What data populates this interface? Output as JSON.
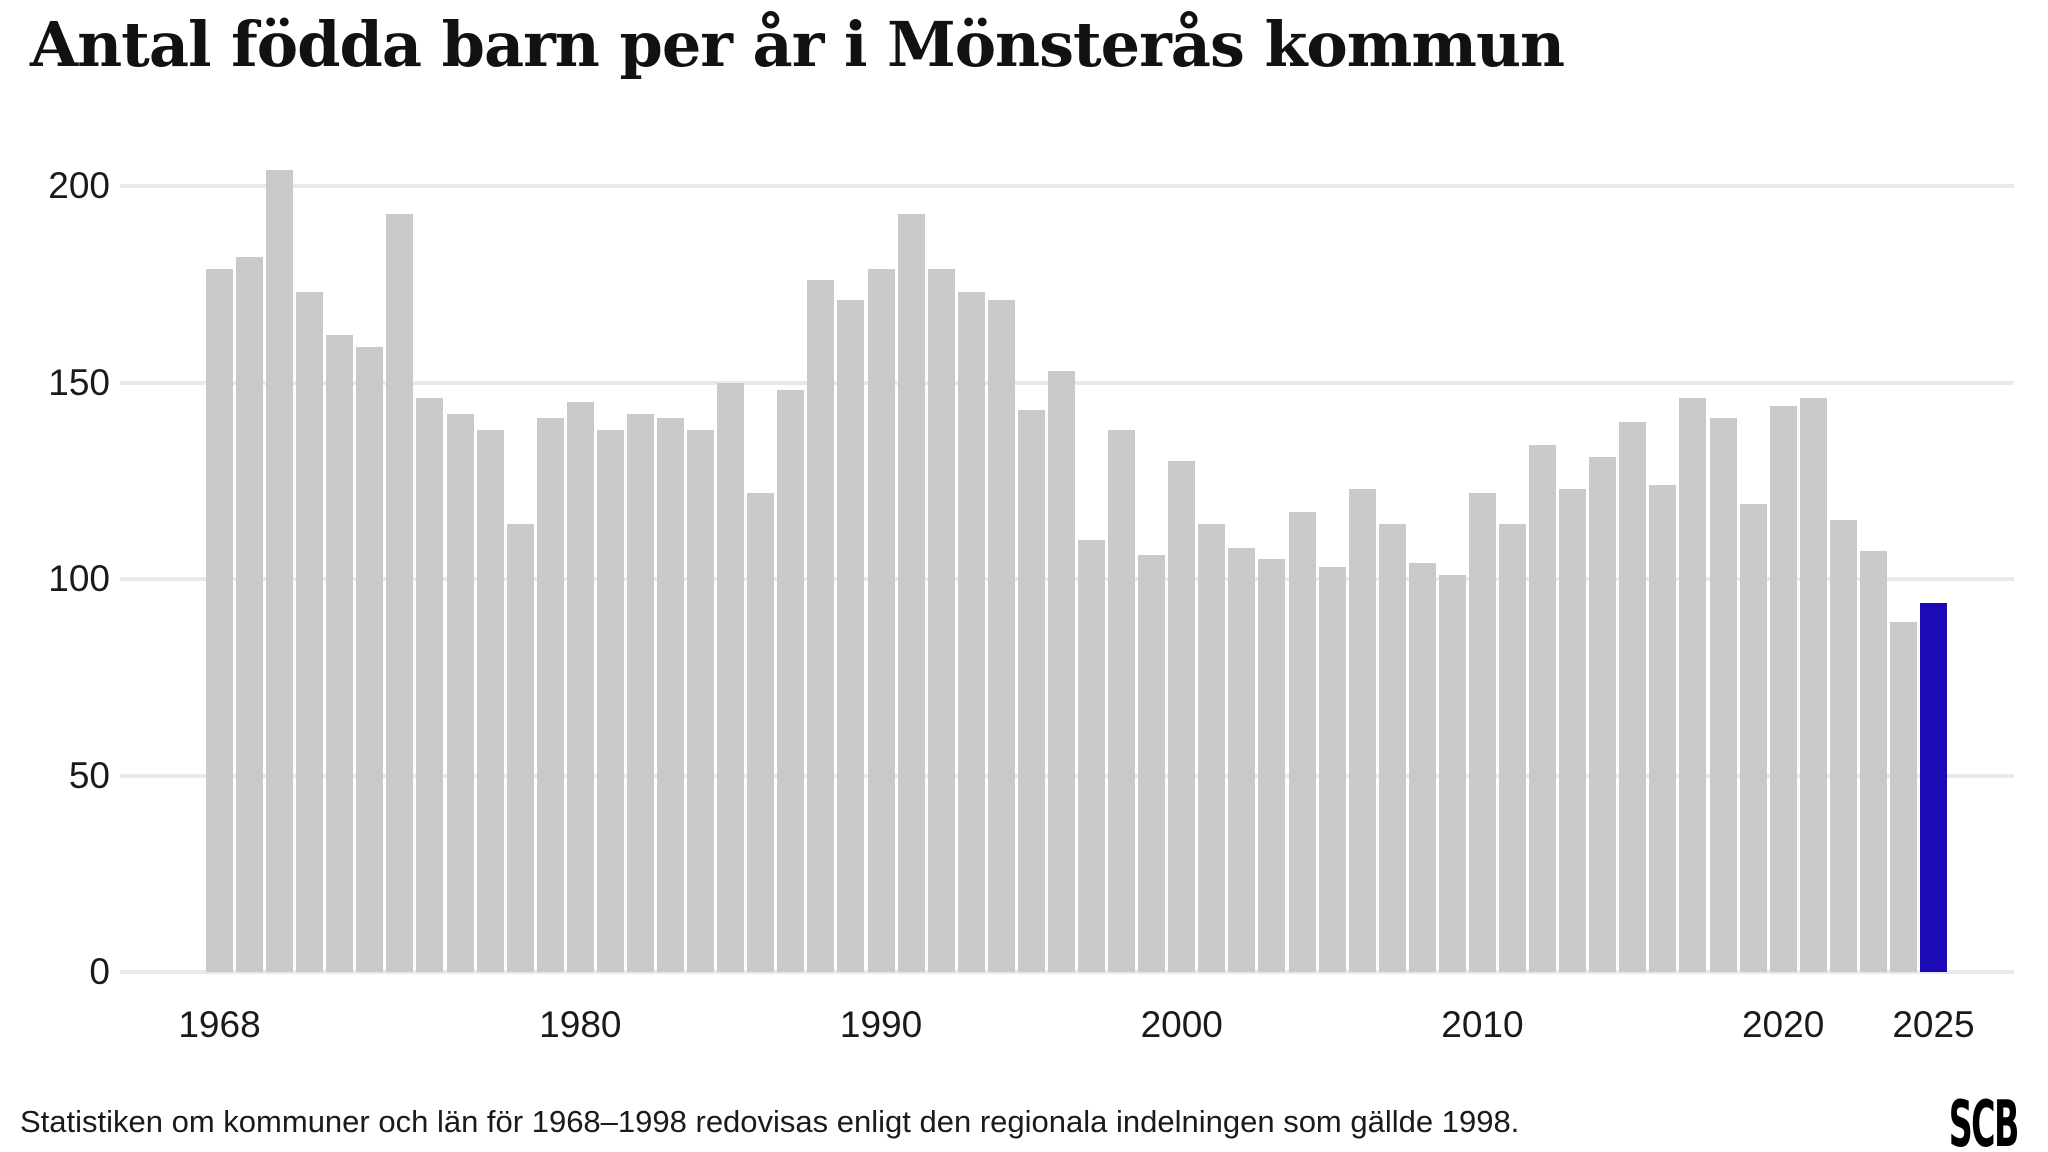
{
  "title": "Antal födda barn per år i Mönsterås kommun",
  "footer": {
    "note": "Statistiken om kommuner och län för 1968–1998 redovisas enligt den regionala indelningen som gällde 1998.",
    "logo": "SCB"
  },
  "colors": {
    "background": "#ffffff",
    "text": "#1a1a1a",
    "gridline": "#e8e8ed",
    "bar": "#c9c9c9",
    "highlight": "#1c0ab4"
  },
  "chart_data": {
    "type": "bar",
    "title": "Antal födda barn per år i Mönsterås kommun",
    "xlabel": "",
    "ylabel": "",
    "grid": true,
    "legend_position": "none",
    "ylim": [
      0,
      210
    ],
    "yticks": [
      0,
      50,
      100,
      150,
      200
    ],
    "xticks": [
      1968,
      1980,
      1990,
      2000,
      2010,
      2020,
      2025
    ],
    "bar_color": "#c9c9c9",
    "highlight": {
      "year": 2025,
      "color": "#1c0ab4"
    },
    "x": [
      1968,
      1969,
      1970,
      1971,
      1972,
      1973,
      1974,
      1975,
      1976,
      1977,
      1978,
      1979,
      1980,
      1981,
      1982,
      1983,
      1984,
      1985,
      1986,
      1987,
      1988,
      1989,
      1990,
      1991,
      1992,
      1993,
      1994,
      1995,
      1996,
      1997,
      1998,
      1999,
      2000,
      2001,
      2002,
      2003,
      2004,
      2005,
      2006,
      2007,
      2008,
      2009,
      2010,
      2011,
      2012,
      2013,
      2014,
      2015,
      2016,
      2017,
      2018,
      2019,
      2020,
      2021,
      2022,
      2023,
      2024,
      2025
    ],
    "values": [
      179,
      182,
      204,
      173,
      162,
      159,
      193,
      146,
      142,
      138,
      114,
      141,
      145,
      138,
      142,
      141,
      138,
      150,
      122,
      148,
      176,
      171,
      179,
      193,
      179,
      173,
      171,
      143,
      153,
      110,
      138,
      106,
      130,
      114,
      108,
      105,
      117,
      103,
      123,
      114,
      104,
      101,
      122,
      114,
      134,
      123,
      131,
      140,
      124,
      146,
      141,
      119,
      144,
      146,
      115,
      107,
      89,
      94
    ]
  }
}
